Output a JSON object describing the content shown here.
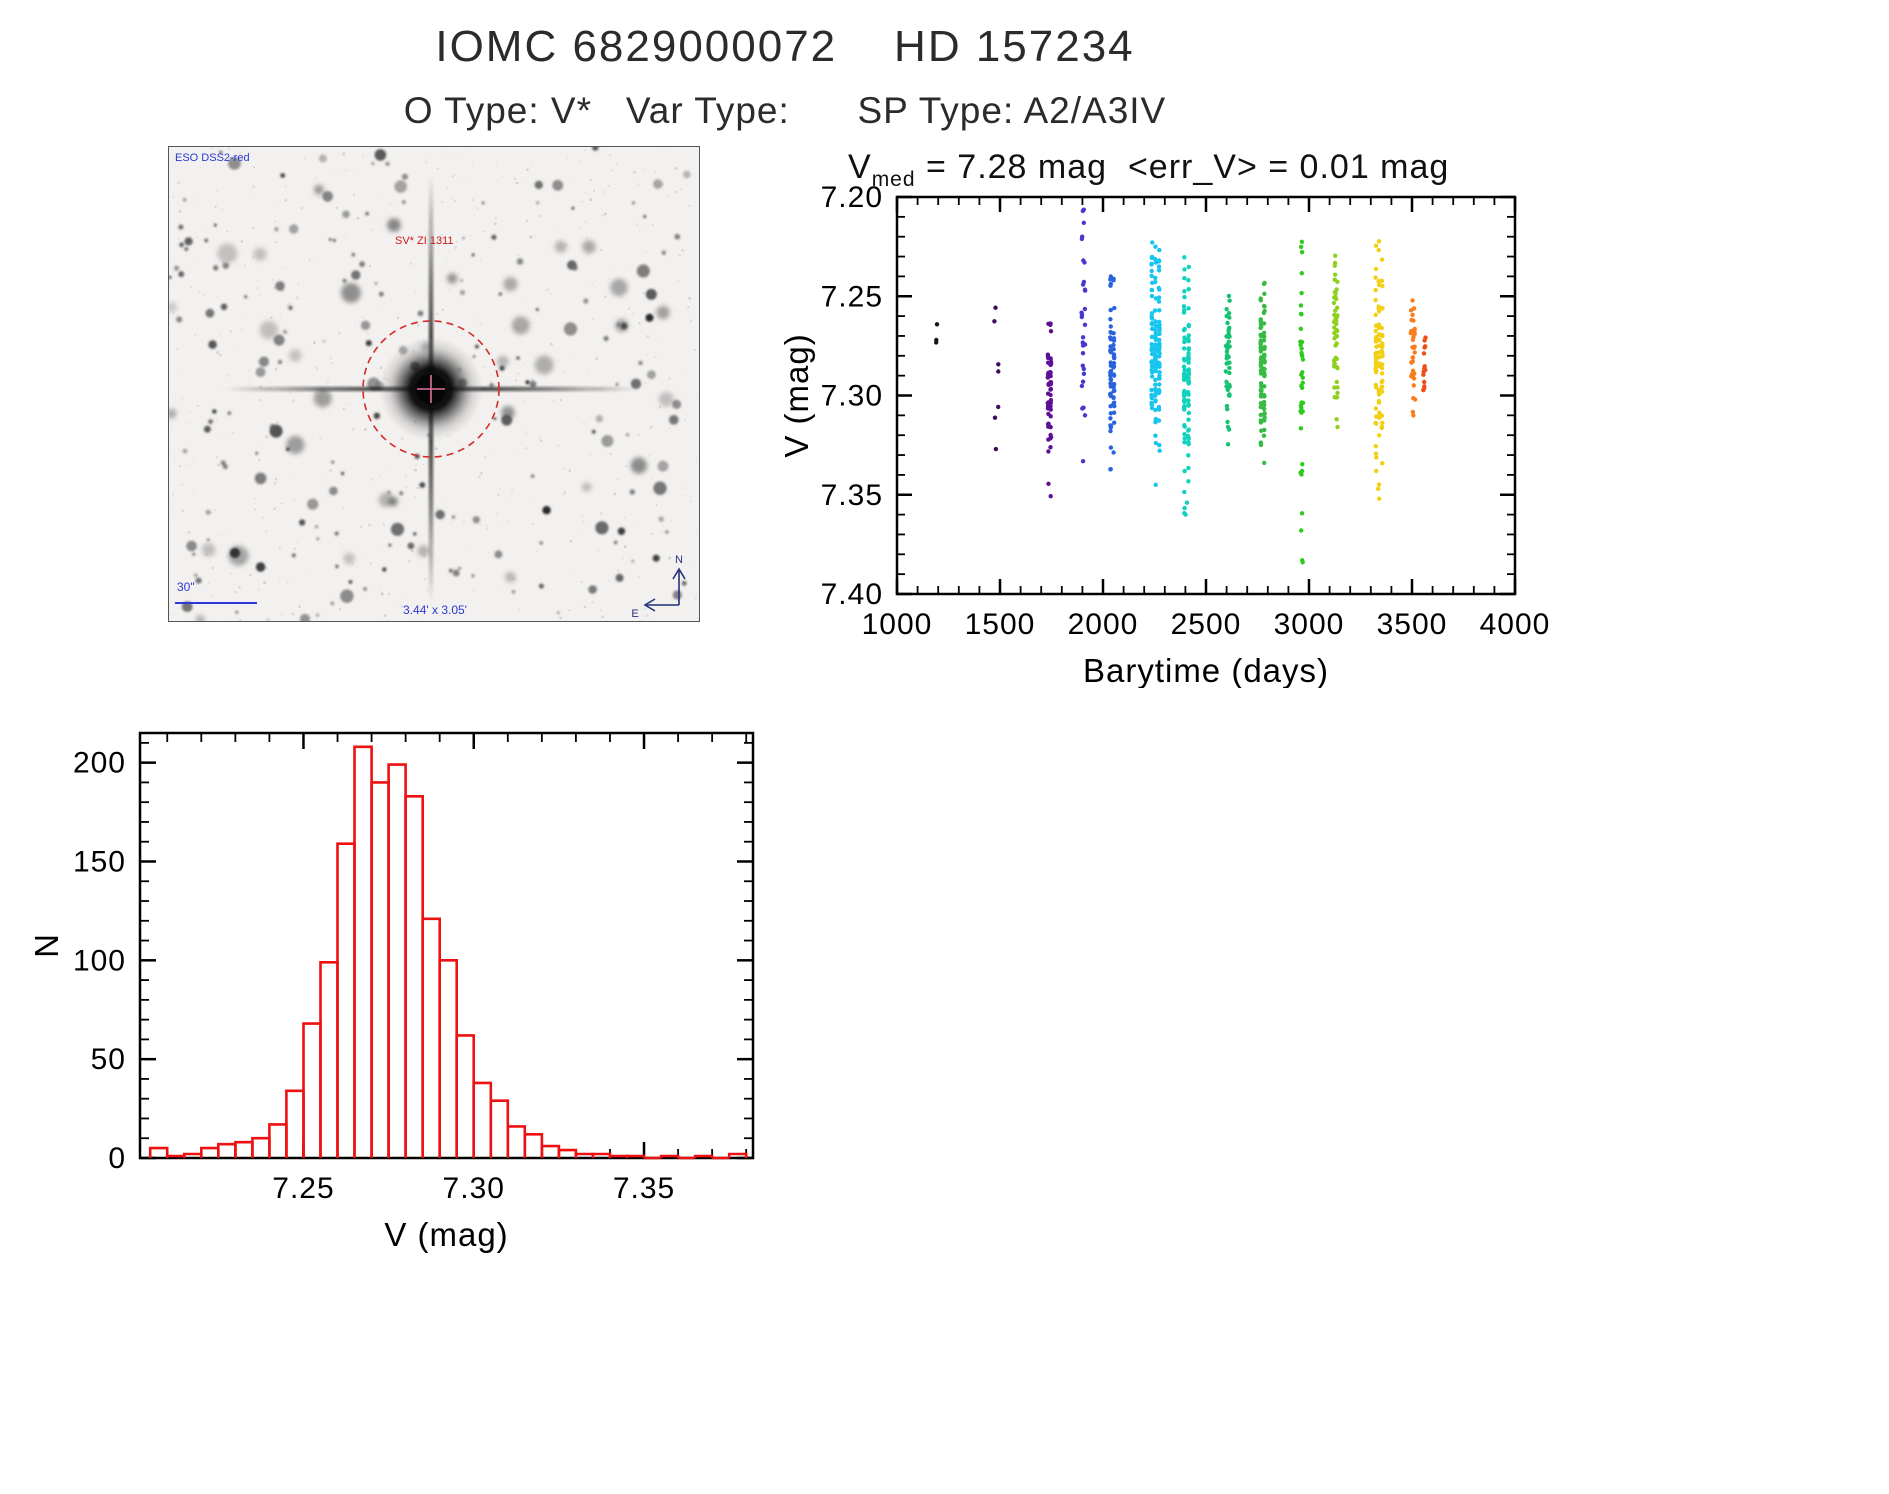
{
  "page": {
    "title": "IOMC 6829000072    HD 157234",
    "subtitle": "O Type: V*   Var Type:      SP Type: A2/A3IV"
  },
  "finder_image": {
    "survey_label": "ESO DSS2-red",
    "star_label": "SV* ZI 1311",
    "scale_label": "30\"",
    "fov_label": "3.44' x 3.05'",
    "compass_north": "N",
    "compass_east": "E"
  },
  "chart_data": [
    {
      "type": "scatter",
      "title_prefix": "V",
      "title_sub": "med",
      "title_rest": " = 7.28 mag  <err_V> = 0.01 mag",
      "v_med_mag": 7.28,
      "err_v_mag": 0.01,
      "xlabel": "Barytime (days)",
      "ylabel": "V (mag)",
      "xlim": [
        1000,
        4000
      ],
      "ylim_top": 7.2,
      "ylim_bottom": 7.4,
      "xticks": [
        "1000",
        "1500",
        "2000",
        "2500",
        "3000",
        "3500",
        "4000"
      ],
      "yticks": [
        "7.20",
        "7.25",
        "7.30",
        "7.35",
        "7.40"
      ],
      "x_minor_step": 100,
      "y_minor_step": 0.01,
      "point_radius": 2.2,
      "clusters": [
        {
          "x": 1195,
          "cols": 1,
          "x_spread": 5,
          "n": 3,
          "v_center": 7.27,
          "v_sigma": 0.003,
          "v_min": 7.264,
          "v_max": 7.276,
          "color": "#151515"
        },
        {
          "x": 1480,
          "cols": 1,
          "x_spread": 12,
          "n": 7,
          "v_center": 7.287,
          "v_sigma": 0.028,
          "v_min": 7.246,
          "v_max": 7.332,
          "color": "#43095a"
        },
        {
          "x": 1740,
          "cols": 2,
          "col_gap": 12,
          "x_spread": 8,
          "n": 55,
          "v_center": 7.303,
          "v_sigma": 0.021,
          "v_min": 7.258,
          "v_max": 7.352,
          "color": "#5d0f96"
        },
        {
          "x": 1905,
          "cols": 1,
          "x_spread": 9,
          "n": 28,
          "v_center": 7.266,
          "v_sigma": 0.03,
          "v_min": 7.205,
          "v_max": 7.335,
          "color": "#4638cf"
        },
        {
          "x": 2045,
          "cols": 2,
          "col_gap": 16,
          "x_spread": 8,
          "n": 70,
          "v_center": 7.288,
          "v_sigma": 0.02,
          "v_min": 7.24,
          "v_max": 7.342,
          "color": "#2a63de"
        },
        {
          "x": 2255,
          "cols": 3,
          "col_gap": 18,
          "x_spread": 8,
          "n": 130,
          "v_center": 7.272,
          "v_sigma": 0.024,
          "v_min": 7.222,
          "v_max": 7.346,
          "color": "#18c5ee"
        },
        {
          "x": 2405,
          "cols": 2,
          "col_gap": 20,
          "x_spread": 8,
          "n": 110,
          "v_center": 7.292,
          "v_sigma": 0.026,
          "v_min": 7.228,
          "v_max": 7.362,
          "color": "#10d2bd"
        },
        {
          "x": 2605,
          "cols": 1,
          "x_spread": 10,
          "n": 45,
          "v_center": 7.287,
          "v_sigma": 0.019,
          "v_min": 7.248,
          "v_max": 7.33,
          "color": "#17c271"
        },
        {
          "x": 2775,
          "cols": 2,
          "col_gap": 16,
          "x_spread": 8,
          "n": 85,
          "v_center": 7.289,
          "v_sigma": 0.021,
          "v_min": 7.24,
          "v_max": 7.336,
          "color": "#37bb42"
        },
        {
          "x": 2965,
          "cols": 1,
          "x_spread": 7,
          "n": 38,
          "v_center": 7.294,
          "v_sigma": 0.033,
          "v_min": 7.222,
          "v_max": 7.386,
          "color": "#2ecb1d"
        },
        {
          "x": 3130,
          "cols": 1,
          "x_spread": 9,
          "n": 50,
          "v_center": 7.278,
          "v_sigma": 0.024,
          "v_min": 7.226,
          "v_max": 7.332,
          "color": "#8fd11f"
        },
        {
          "x": 3340,
          "cols": 3,
          "col_gap": 15,
          "x_spread": 7,
          "n": 95,
          "v_center": 7.285,
          "v_sigma": 0.027,
          "v_min": 7.22,
          "v_max": 7.356,
          "color": "#f2cf12"
        },
        {
          "x": 3505,
          "cols": 1,
          "x_spread": 11,
          "n": 35,
          "v_center": 7.281,
          "v_sigma": 0.014,
          "v_min": 7.25,
          "v_max": 7.312,
          "color": "#f97d1d"
        },
        {
          "x": 3560,
          "cols": 1,
          "x_spread": 7,
          "n": 14,
          "v_center": 7.282,
          "v_sigma": 0.011,
          "v_min": 7.258,
          "v_max": 7.306,
          "color": "#ee4d13"
        }
      ],
      "extra_points": [
        [
          1902,
          7.207,
          "#4638cf"
        ],
        [
          1907,
          7.213,
          "#4638cf"
        ],
        [
          1899,
          7.22,
          "#4638cf"
        ],
        [
          2962,
          7.368,
          "#2ecb1d"
        ],
        [
          2967,
          7.383,
          "#2ecb1d"
        ],
        [
          2401,
          7.36,
          "#10d2bd"
        ],
        [
          2408,
          7.354,
          "#10d2bd"
        ],
        [
          2256,
          7.345,
          "#18c5ee"
        ],
        [
          3341,
          7.352,
          "#f2cf12"
        ],
        [
          3336,
          7.347,
          "#f2cf12"
        ]
      ]
    },
    {
      "type": "histogram",
      "xlabel": "V (mag)",
      "ylabel": "N",
      "xlim": [
        7.202,
        7.382
      ],
      "ylim": [
        0,
        215
      ],
      "xticks": [
        "7.25",
        "7.30",
        "7.35"
      ],
      "yticks": [
        "0",
        "50",
        "100",
        "150",
        "200"
      ],
      "x_minor_step": 0.01,
      "y_minor_step": 10,
      "bin_start": 7.205,
      "bin_width": 0.005,
      "counts": [
        5,
        1,
        2,
        5,
        7,
        8,
        10,
        17,
        34,
        68,
        99,
        159,
        208,
        190,
        199,
        183,
        121,
        100,
        62,
        38,
        29,
        16,
        12,
        6,
        4,
        2,
        2,
        1,
        1,
        0,
        1,
        0,
        1,
        0,
        2
      ],
      "bar_color": "#ee1111"
    }
  ]
}
